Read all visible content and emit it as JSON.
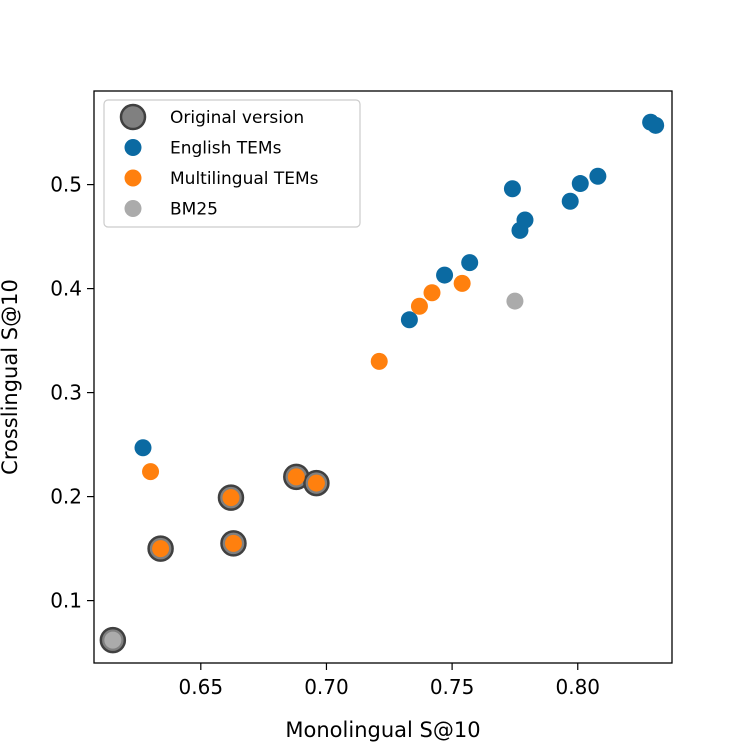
{
  "chart_data": {
    "type": "scatter",
    "title": "",
    "xlabel": "Monolingual S@10",
    "ylabel": "Crosslingual S@10",
    "xlim": [
      0.6075,
      0.8375
    ],
    "ylim": [
      0.04,
      0.59
    ],
    "xticks": [
      0.65,
      0.7,
      0.75,
      0.8
    ],
    "xtick_labels": [
      "0.65",
      "0.70",
      "0.75",
      "0.80"
    ],
    "yticks": [
      0.1,
      0.2,
      0.3,
      0.4,
      0.5
    ],
    "ytick_labels": [
      "0.1",
      "0.2",
      "0.3",
      "0.4",
      "0.5"
    ],
    "grid": false,
    "legend_position": "top-left",
    "series": [
      {
        "name": "Original version",
        "color": "#808080",
        "style": "large-outlined",
        "points": [
          {
            "x": 0.615,
            "y": 0.062
          },
          {
            "x": 0.634,
            "y": 0.15
          },
          {
            "x": 0.662,
            "y": 0.199
          },
          {
            "x": 0.663,
            "y": 0.155
          },
          {
            "x": 0.688,
            "y": 0.219
          },
          {
            "x": 0.696,
            "y": 0.213
          }
        ]
      },
      {
        "name": "English TEMs",
        "color": "#0b6aa2",
        "style": "dot",
        "points": [
          {
            "x": 0.627,
            "y": 0.247
          },
          {
            "x": 0.733,
            "y": 0.37
          },
          {
            "x": 0.747,
            "y": 0.413
          },
          {
            "x": 0.757,
            "y": 0.425
          },
          {
            "x": 0.774,
            "y": 0.496
          },
          {
            "x": 0.777,
            "y": 0.456
          },
          {
            "x": 0.779,
            "y": 0.466
          },
          {
            "x": 0.797,
            "y": 0.484
          },
          {
            "x": 0.801,
            "y": 0.501
          },
          {
            "x": 0.808,
            "y": 0.508
          },
          {
            "x": 0.829,
            "y": 0.56
          },
          {
            "x": 0.831,
            "y": 0.557
          }
        ]
      },
      {
        "name": "Multilingual TEMs",
        "color": "#ff800e",
        "style": "dot",
        "points": [
          {
            "x": 0.63,
            "y": 0.224
          },
          {
            "x": 0.634,
            "y": 0.15
          },
          {
            "x": 0.662,
            "y": 0.199
          },
          {
            "x": 0.663,
            "y": 0.155
          },
          {
            "x": 0.688,
            "y": 0.219
          },
          {
            "x": 0.696,
            "y": 0.213
          },
          {
            "x": 0.721,
            "y": 0.33
          },
          {
            "x": 0.737,
            "y": 0.383
          },
          {
            "x": 0.742,
            "y": 0.396
          },
          {
            "x": 0.754,
            "y": 0.405
          }
        ]
      },
      {
        "name": "BM25",
        "color": "#ababab",
        "style": "dot",
        "points": [
          {
            "x": 0.615,
            "y": 0.062
          },
          {
            "x": 0.775,
            "y": 0.388
          }
        ]
      }
    ]
  }
}
